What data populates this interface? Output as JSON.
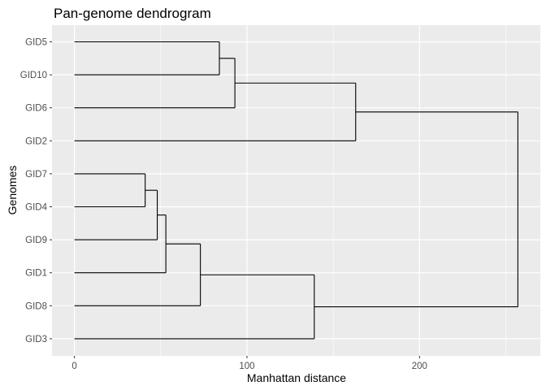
{
  "chart_data": {
    "type": "dendrogram",
    "title": "Pan-genome dendrogram",
    "xlabel": "Manhattan distance",
    "ylabel": "Genomes",
    "xlim": [
      -13,
      270
    ],
    "x_ticks": [
      0,
      100,
      200
    ],
    "leaves": [
      "GID5",
      "GID10",
      "GID6",
      "GID2",
      "GID7",
      "GID4",
      "GID9",
      "GID1",
      "GID8",
      "GID3"
    ],
    "merges": [
      {
        "id": "n1",
        "children": [
          "GID5",
          "GID10"
        ],
        "height": 84
      },
      {
        "id": "n2",
        "children": [
          "n1",
          "GID6"
        ],
        "height": 93
      },
      {
        "id": "n3",
        "children": [
          "n2",
          "GID2"
        ],
        "height": 163
      },
      {
        "id": "n4",
        "children": [
          "GID7",
          "GID4"
        ],
        "height": 41
      },
      {
        "id": "n5",
        "children": [
          "n4",
          "GID9"
        ],
        "height": 48
      },
      {
        "id": "n6",
        "children": [
          "n5",
          "GID1"
        ],
        "height": 53
      },
      {
        "id": "n7",
        "children": [
          "n6",
          "GID8"
        ],
        "height": 73
      },
      {
        "id": "n8",
        "children": [
          "n7",
          "GID3"
        ],
        "height": 139
      },
      {
        "id": "n9",
        "children": [
          "n3",
          "n8"
        ],
        "height": 257
      }
    ],
    "grid": true,
    "panel_background": "#ebebeb",
    "grid_color": "#ffffff",
    "line_color": "#000000"
  }
}
